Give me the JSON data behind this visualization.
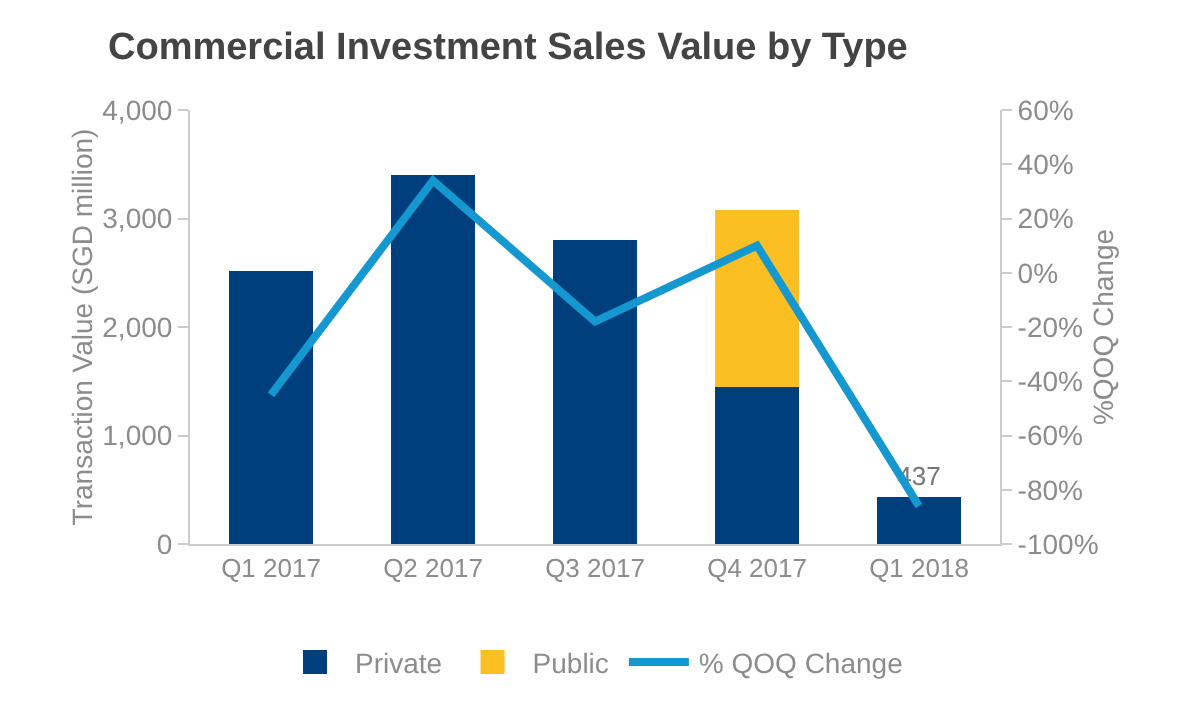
{
  "chart_data": {
    "type": "bar",
    "title": "Commercial Investment Sales Value by Type",
    "ylabel": "Transaction Value (SGD million)",
    "y2label": "%QOQ Change",
    "categories": [
      "Q1 2017",
      "Q2 2017",
      "Q3 2017",
      "Q4 2017",
      "Q1 2018"
    ],
    "stacked": true,
    "series": [
      {
        "name": "Private",
        "color": "#003f7d",
        "values": [
          2520,
          3400,
          2800,
          1450,
          437
        ],
        "value_labels": [
          null,
          null,
          null,
          null,
          "437"
        ]
      },
      {
        "name": "Public",
        "color": "#fbbf24",
        "values": [
          null,
          null,
          null,
          1630,
          null
        ]
      },
      {
        "name": "% QOQ Change",
        "type": "line",
        "axis": "y2",
        "color": "#1598cf",
        "values": [
          -45,
          34,
          -18,
          10,
          -86
        ]
      }
    ],
    "ylim": [
      0,
      4000
    ],
    "yticks": [
      {
        "value": 0,
        "label": "0"
      },
      {
        "value": 1000,
        "label": "1,000"
      },
      {
        "value": 2000,
        "label": "2,000"
      },
      {
        "value": 3000,
        "label": "3,000"
      },
      {
        "value": 4000,
        "label": "4,000"
      }
    ],
    "y2lim": [
      -100,
      60
    ],
    "y2ticks": [
      {
        "value": -100,
        "label": "-100%"
      },
      {
        "value": -80,
        "label": "-80%"
      },
      {
        "value": -60,
        "label": "-60%"
      },
      {
        "value": -40,
        "label": "-40%"
      },
      {
        "value": -20,
        "label": "-20%"
      },
      {
        "value": 0,
        "label": "0%"
      },
      {
        "value": 20,
        "label": "20%"
      },
      {
        "value": 40,
        "label": "40%"
      },
      {
        "value": 60,
        "label": "60%"
      }
    ],
    "grid": false,
    "legend": "bottom",
    "marker": "none"
  }
}
